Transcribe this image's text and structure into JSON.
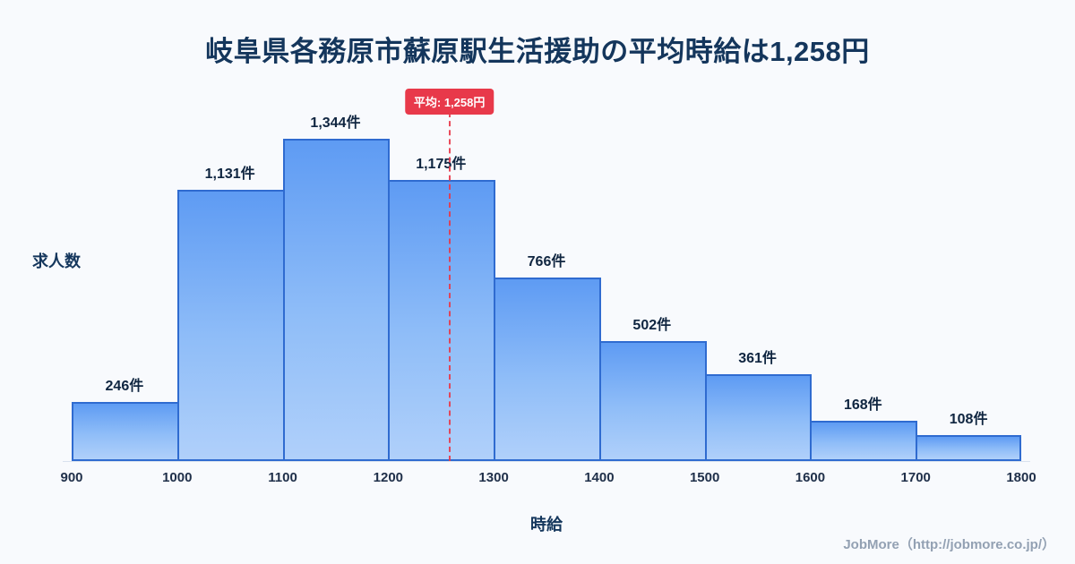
{
  "title": "岐阜県各務原市蘇原駅生活援助の平均時給は1,258円",
  "chart_data": {
    "type": "bar",
    "title": "岐阜県各務原市蘇原駅生活援助の平均時給は1,258円",
    "xlabel": "時給",
    "ylabel": "求人数",
    "bin_edges": [
      900,
      1000,
      1100,
      1200,
      1300,
      1400,
      1500,
      1600,
      1700,
      1800
    ],
    "tick_labels": [
      "900",
      "1000",
      "1100",
      "1200",
      "1300",
      "1400",
      "1500",
      "1600",
      "1700",
      "1800"
    ],
    "categories": [
      "900-1000",
      "1000-1100",
      "1100-1200",
      "1200-1300",
      "1300-1400",
      "1400-1500",
      "1500-1600",
      "1600-1700",
      "1700-1800"
    ],
    "values": [
      246,
      1131,
      1344,
      1175,
      766,
      502,
      361,
      168,
      108
    ],
    "value_labels": [
      "246件",
      "1,131件",
      "1,344件",
      "1,175件",
      "766件",
      "502件",
      "361件",
      "168件",
      "108件"
    ],
    "mean": {
      "value": 1258,
      "label": "平均: 1,258円"
    },
    "ylim": [
      0,
      1420
    ],
    "grid": false,
    "legend": "none",
    "colors": {
      "bar_fill_top": "#5e9bf3",
      "bar_fill_bottom": "#b0d0fa",
      "bar_border": "#2f6bd0",
      "mean_line": "#e8394a",
      "title_text": "#14365c",
      "background": "#f8fafd"
    }
  },
  "footer": {
    "credit": "JobMore（http://jobmore.co.jp/）"
  }
}
